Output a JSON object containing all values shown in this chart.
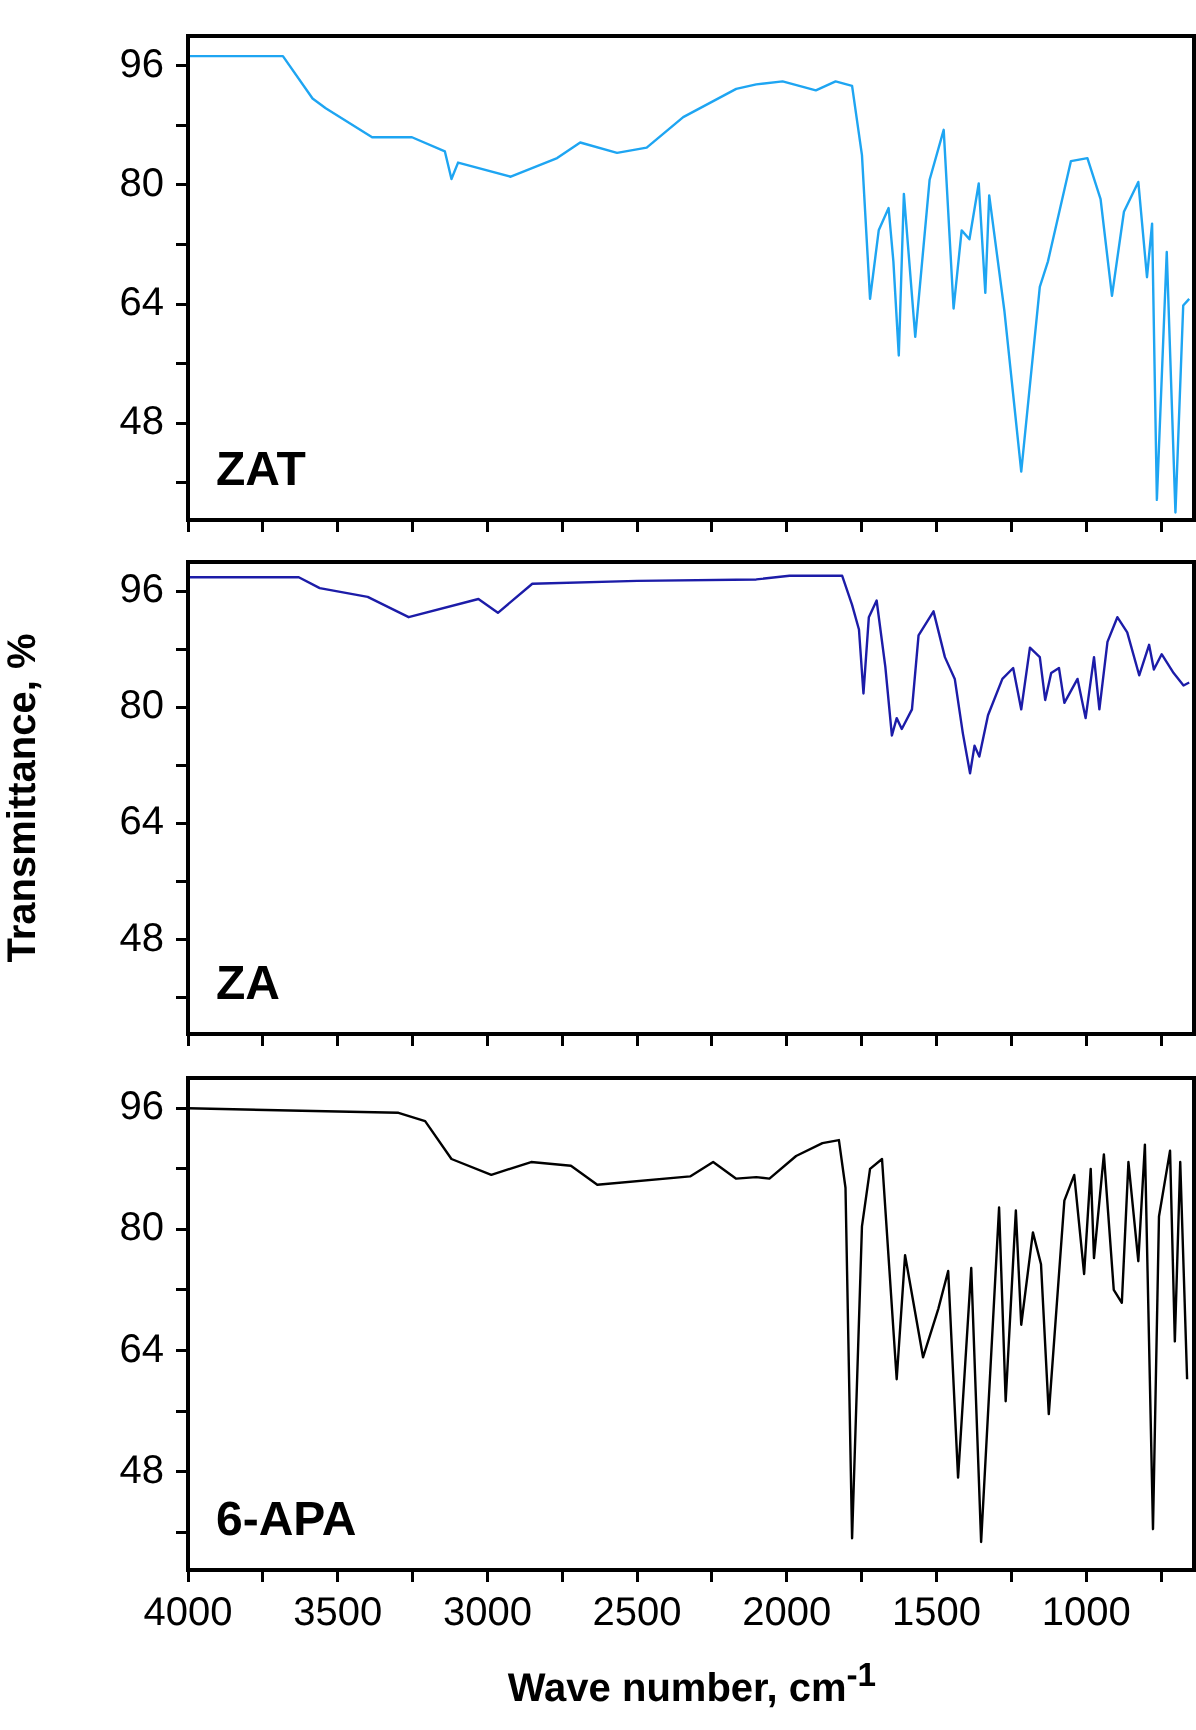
{
  "chart_data": [
    {
      "type": "line",
      "xlim": [
        4000,
        640
      ],
      "ylim": [
        35,
        100
      ],
      "tick_labels": "y",
      "xticks": [
        4000,
        {
          "value": 3750,
          "label": null
        },
        3500,
        {
          "value": 3250,
          "label": null
        },
        3000,
        {
          "value": 2750,
          "label": null
        },
        2500,
        {
          "value": 2250,
          "label": null
        },
        2000,
        {
          "value": 1750,
          "label": null
        },
        1500,
        {
          "value": 1250,
          "label": null
        },
        1000,
        {
          "value": 750,
          "label": null
        }
      ],
      "yticks": [
        {
          "value": 40,
          "label": null
        },
        48,
        {
          "value": 56,
          "label": null
        },
        64,
        {
          "value": 72,
          "label": null
        },
        80,
        {
          "value": 88,
          "label": null
        },
        96
      ],
      "annotations": [
        "ZAT"
      ],
      "series": [
        {
          "color": "#1ea5f2",
          "x": [
            4000,
            3683,
            3584,
            3540,
            3385,
            3252,
            3142,
            3120,
            3098,
            2922,
            2767,
            2690,
            2567,
            2468,
            2346,
            2169,
            2102,
            2014,
            1903,
            1837,
            1782,
            1749,
            1722,
            1693,
            1660,
            1644,
            1626,
            1609,
            1571,
            1523,
            1476,
            1443,
            1416,
            1390,
            1359,
            1337,
            1324,
            1273,
            1217,
            1155,
            1128,
            1051,
            996,
            952,
            914,
            874,
            826,
            797,
            780,
            764,
            731,
            702,
            676,
            656
          ],
          "values": [
            97.3,
            97.3,
            91.6,
            90.3,
            86.4,
            86.4,
            84.5,
            80.8,
            83.0,
            81.1,
            83.6,
            85.7,
            84.3,
            85.0,
            89.1,
            92.9,
            93.5,
            93.9,
            92.7,
            93.9,
            93.3,
            84.0,
            64.7,
            73.9,
            76.9,
            69.7,
            57.1,
            78.8,
            59.6,
            80.7,
            87.4,
            63.4,
            73.9,
            72.7,
            80.2,
            65.5,
            78.6,
            63.0,
            41.5,
            66.3,
            69.7,
            83.2,
            83.6,
            78.1,
            65.1,
            76.4,
            80.4,
            67.6,
            74.8,
            37.7,
            71.0,
            36.0,
            63.8,
            64.7
          ]
        }
      ]
    },
    {
      "type": "line",
      "xlim": [
        4000,
        640
      ],
      "ylim": [
        35,
        100
      ],
      "tick_labels": "y",
      "ylabel": "Transmittance, %",
      "xticks": [
        4000,
        {
          "value": 3750,
          "label": null
        },
        3500,
        {
          "value": 3250,
          "label": null
        },
        3000,
        {
          "value": 2750,
          "label": null
        },
        2500,
        {
          "value": 2250,
          "label": null
        },
        2000,
        {
          "value": 1750,
          "label": null
        },
        1500,
        {
          "value": 1250,
          "label": null
        },
        1000,
        {
          "value": 750,
          "label": null
        }
      ],
      "yticks": [
        {
          "value": 40,
          "label": null
        },
        48,
        {
          "value": 56,
          "label": null
        },
        64,
        {
          "value": 72,
          "label": null
        },
        80,
        {
          "value": 88,
          "label": null
        },
        96
      ],
      "annotations": [
        "ZA"
      ],
      "series": [
        {
          "color": "#1c1ca8",
          "x": [
            4000,
            3630,
            3560,
            3400,
            3263,
            3030,
            2965,
            2850,
            2500,
            2102,
            1991,
            1815,
            1782,
            1759,
            1744,
            1726,
            1700,
            1671,
            1649,
            1633,
            1616,
            1582,
            1560,
            1510,
            1472,
            1439,
            1412,
            1388,
            1373,
            1357,
            1328,
            1280,
            1244,
            1217,
            1188,
            1155,
            1137,
            1117,
            1091,
            1073,
            1029,
            1002,
            974,
            956,
            929,
            896,
            863,
            823,
            790,
            774,
            748,
            708,
            675,
            656
          ],
          "values": [
            97.9,
            97.9,
            96.4,
            95.2,
            92.4,
            94.9,
            93.0,
            97.0,
            97.4,
            97.6,
            98.1,
            98.1,
            94.1,
            90.7,
            81.9,
            92.4,
            94.7,
            85.6,
            76.1,
            78.5,
            77.0,
            79.7,
            89.9,
            93.2,
            86.9,
            83.9,
            76.4,
            70.9,
            74.7,
            73.2,
            78.9,
            83.9,
            85.4,
            79.7,
            88.2,
            86.9,
            81.0,
            84.7,
            85.4,
            80.6,
            83.9,
            78.5,
            86.9,
            79.7,
            89.0,
            92.4,
            90.3,
            84.4,
            88.6,
            85.2,
            87.3,
            84.7,
            83.0,
            83.4
          ]
        }
      ]
    },
    {
      "type": "line",
      "xlim": [
        4000,
        640
      ],
      "ylim": [
        35,
        100
      ],
      "xlabel": "Wave number, cm$^{-1}$",
      "xticks": [
        4000,
        {
          "value": 3750,
          "label": null
        },
        3500,
        {
          "value": 3250,
          "label": null
        },
        3000,
        {
          "value": 2750,
          "label": null
        },
        2500,
        {
          "value": 2250,
          "label": null
        },
        2000,
        {
          "value": 1750,
          "label": null
        },
        1500,
        {
          "value": 1250,
          "label": null
        },
        1000,
        {
          "value": 750,
          "label": null
        }
      ],
      "yticks": [
        {
          "value": 40,
          "label": null
        },
        48,
        {
          "value": 56,
          "label": null
        },
        64,
        {
          "value": 72,
          "label": null
        },
        80,
        {
          "value": 88,
          "label": null
        },
        96
      ],
      "annotations": [
        "6-APA"
      ],
      "series": [
        {
          "color": "#000000",
          "x": [
            4000,
            3540,
            3297,
            3208,
            3120,
            2987,
            2854,
            2721,
            2633,
            2323,
            2246,
            2169,
            2102,
            2058,
            1969,
            1881,
            1826,
            1804,
            1782,
            1749,
            1722,
            1682,
            1633,
            1605,
            1545,
            1494,
            1461,
            1428,
            1384,
            1351,
            1291,
            1269,
            1235,
            1217,
            1178,
            1151,
            1125,
            1073,
            1040,
            1007,
            985,
            974,
            941,
            908,
            881,
            859,
            826,
            804,
            777,
            757,
            720,
            704,
            686,
            663
          ],
          "values": [
            96.0,
            95.6,
            95.4,
            94.3,
            89.3,
            87.2,
            88.9,
            88.4,
            85.9,
            87.0,
            88.9,
            86.7,
            86.9,
            86.7,
            89.7,
            91.4,
            91.8,
            85.5,
            39.2,
            80.4,
            88.0,
            89.3,
            60.2,
            76.6,
            63.1,
            69.5,
            74.5,
            47.2,
            74.9,
            38.7,
            82.9,
            57.3,
            82.5,
            67.4,
            79.6,
            75.4,
            55.6,
            83.8,
            87.2,
            74.1,
            88.0,
            76.2,
            89.9,
            72.0,
            70.3,
            88.9,
            75.8,
            91.2,
            40.4,
            81.7,
            90.4,
            65.2,
            88.9,
            60.2
          ]
        }
      ]
    }
  ]
}
